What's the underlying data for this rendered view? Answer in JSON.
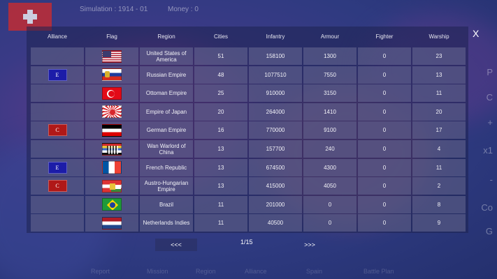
{
  "topbar": {
    "simulation": "Simulation : 1914 - 01",
    "money": "Money : 0"
  },
  "side_letters": [
    "P",
    "C",
    "+",
    "x1",
    "-",
    "Co",
    "G"
  ],
  "close_label": "X",
  "columns": [
    "Alliance",
    "Flag",
    "Region",
    "Cities",
    "Infantry",
    "Armour",
    "Fighter",
    "Warship"
  ],
  "rows": [
    {
      "alliance": "",
      "flag": "usa",
      "region": "United States of America",
      "cities": "51",
      "infantry": "158100",
      "armour": "1300",
      "fighter": "0",
      "warship": "23"
    },
    {
      "alliance": "E",
      "alliance_color": "#1c1ca8",
      "flag": "rus",
      "region": "Russian Empire",
      "cities": "48",
      "infantry": "1077510",
      "armour": "7550",
      "fighter": "0",
      "warship": "13"
    },
    {
      "alliance": "",
      "flag": "ott",
      "region": "Ottoman Empire",
      "cities": "25",
      "infantry": "910000",
      "armour": "3150",
      "fighter": "0",
      "warship": "11"
    },
    {
      "alliance": "",
      "flag": "jap",
      "region": "Empire of Japan",
      "cities": "20",
      "infantry": "264000",
      "armour": "1410",
      "fighter": "0",
      "warship": "20"
    },
    {
      "alliance": "C",
      "alliance_color": "#b01818",
      "flag": "ger",
      "region": "German Empire",
      "cities": "16",
      "infantry": "770000",
      "armour": "9100",
      "fighter": "0",
      "warship": "17"
    },
    {
      "alliance": "",
      "flag": "chn",
      "region": "Wan Warlord of China",
      "cities": "13",
      "infantry": "157700",
      "armour": "240",
      "fighter": "0",
      "warship": "4"
    },
    {
      "alliance": "E",
      "alliance_color": "#1c1ca8",
      "flag": "fra",
      "region": "French Republic",
      "cities": "13",
      "infantry": "674500",
      "armour": "4300",
      "fighter": "0",
      "warship": "11"
    },
    {
      "alliance": "C",
      "alliance_color": "#b01818",
      "flag": "aus",
      "region": "Austro-Hungarian Empire",
      "cities": "13",
      "infantry": "415000",
      "armour": "4050",
      "fighter": "0",
      "warship": "2"
    },
    {
      "alliance": "",
      "flag": "bra",
      "region": "Brazil",
      "cities": "11",
      "infantry": "201000",
      "armour": "0",
      "fighter": "0",
      "warship": "8"
    },
    {
      "alliance": "",
      "flag": "ned",
      "region": "Netherlands Indies",
      "cities": "11",
      "infantry": "40500",
      "armour": "0",
      "fighter": "0",
      "warship": "9"
    }
  ],
  "pager": {
    "prev": "<<<",
    "page": "1/15",
    "next": ">>>"
  },
  "bottom_menu": [
    "Report",
    "Mission",
    "Region",
    "Alliance",
    "Spain",
    "Battle Plan"
  ]
}
